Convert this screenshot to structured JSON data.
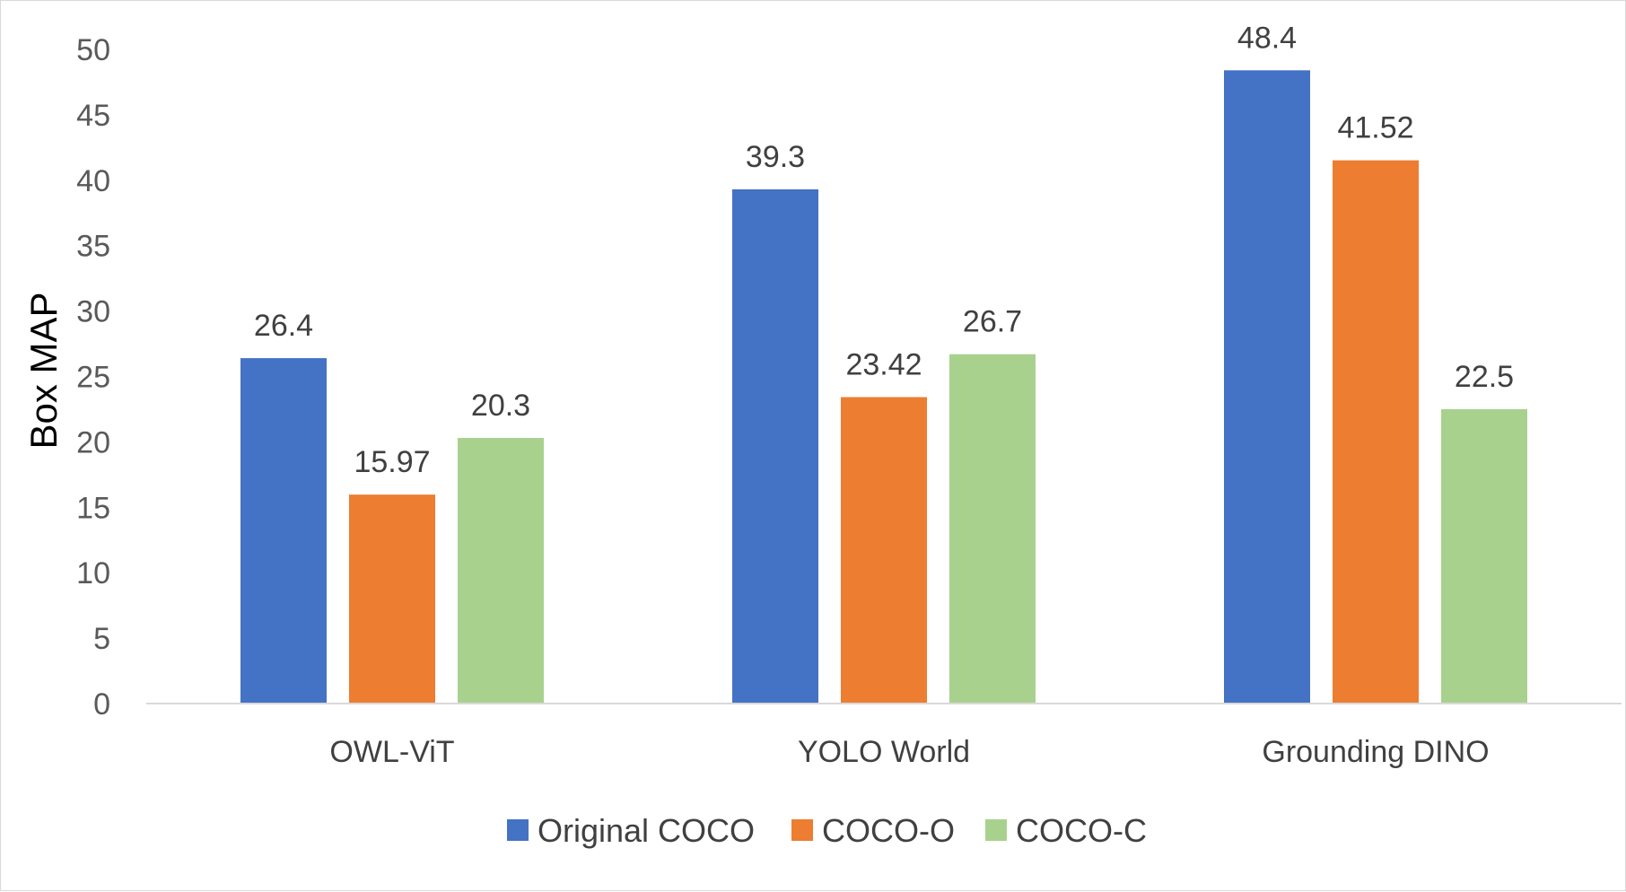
{
  "chart_data": {
    "type": "bar",
    "title": "",
    "xlabel": "",
    "ylabel": "Box MAP",
    "ylim": [
      0,
      50
    ],
    "ytick_step": 5,
    "yticks": [
      0,
      5,
      10,
      15,
      20,
      25,
      30,
      35,
      40,
      45,
      50
    ],
    "categories": [
      "OWL-ViT",
      "YOLO World",
      "Grounding DINO"
    ],
    "series": [
      {
        "name": "Original COCO",
        "color": "#4472c4",
        "values": [
          26.4,
          39.3,
          48.4
        ]
      },
      {
        "name": "COCO-O",
        "color": "#ed7d31",
        "values": [
          15.97,
          23.42,
          41.52
        ]
      },
      {
        "name": "COCO-C",
        "color": "#a9d18e",
        "values": [
          20.3,
          26.7,
          22.5
        ]
      }
    ],
    "data_labels": true,
    "grid": false,
    "legend_position": "bottom"
  }
}
